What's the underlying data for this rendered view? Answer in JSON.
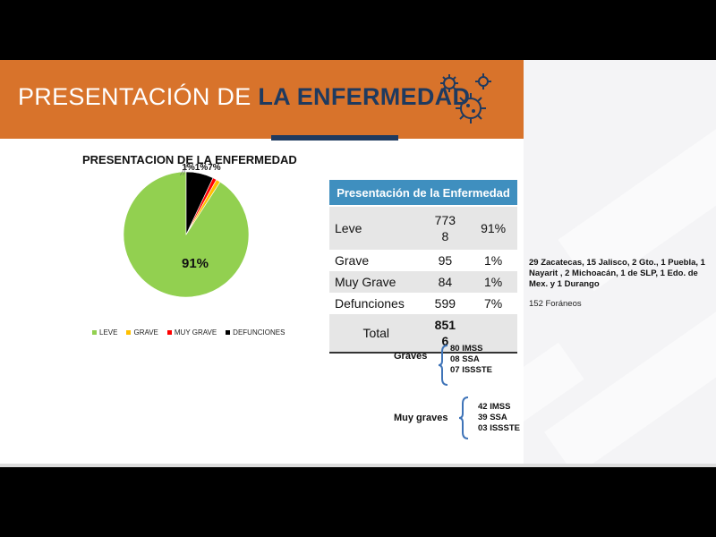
{
  "slide": {
    "title_light": "PRESENTACIÓN DE",
    "title_bold": "LA ENFERMEDAD"
  },
  "chart_data": {
    "type": "pie",
    "title": "PRESENTACION DE LA ENFERMEDAD",
    "categories": [
      "LEVE",
      "GRAVE",
      "MUY GRAVE",
      "DEFUNCIONES"
    ],
    "values": [
      7738,
      95,
      84,
      599
    ],
    "percent_labels": [
      "91%",
      "1%",
      "1%",
      "7%"
    ],
    "colors": [
      "#92d050",
      "#ffc000",
      "#ff0000",
      "#000000"
    ],
    "legend_position": "bottom"
  },
  "table": {
    "header": "Presentación de la Enfermedad",
    "rows": [
      {
        "label": "Leve",
        "count": "7738",
        "pct": "91%"
      },
      {
        "label": "Grave",
        "count": "95",
        "pct": "1%"
      },
      {
        "label": "Muy Grave",
        "count": "84",
        "pct": "1%"
      },
      {
        "label": "Defunciones",
        "count": "599",
        "pct": "7%"
      }
    ],
    "total_label": "Total",
    "total_value": "8516"
  },
  "notes": {
    "states": "29 Zacatecas, 15 Jalisco, 2 Gto., 1 Puebla, 1 Nayarit , 2 Michoacán, 1 de SLP, 1 Edo. de Mex. y 1 Durango",
    "foraneos": "152 Foráneos"
  },
  "graves": {
    "label": "Graves",
    "items": [
      "80 IMSS",
      "08 SSA",
      "07 ISSSTE"
    ]
  },
  "muy_graves": {
    "label": "Muy graves",
    "items": [
      "42 IMSS",
      "39 SSA",
      "03 ISSSTE"
    ]
  }
}
